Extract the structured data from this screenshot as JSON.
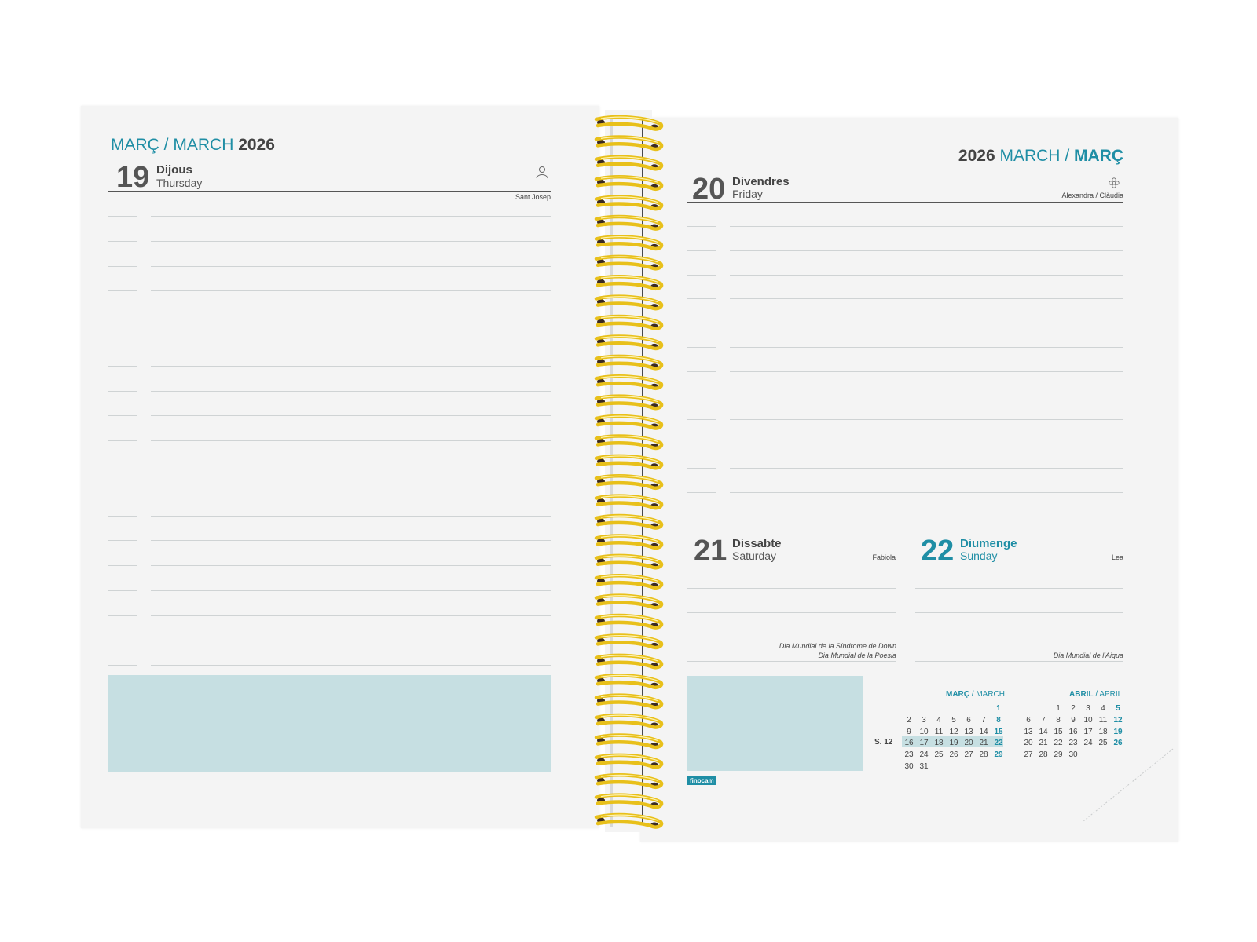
{
  "left_page": {
    "heading": {
      "month_ca": "MARÇ",
      "sep": " / ",
      "month_en": "MARCH",
      "year": " 2026"
    },
    "day": {
      "number": "19",
      "name_ca": "Dijous",
      "name_en": "Thursday",
      "saint": "Sant Josep",
      "icon": "person-icon"
    }
  },
  "right_page": {
    "heading": {
      "year": "2026",
      "month_en": " MARCH",
      "sep": " / ",
      "month_ca": "MARÇ"
    },
    "day20": {
      "number": "20",
      "name_ca": "Divendres",
      "name_en": "Friday",
      "saint": "Alexandra / Clàudia",
      "icon": "flower-icon"
    },
    "day21": {
      "number": "21",
      "name_ca": "Dissabte",
      "name_en": "Saturday",
      "saint": "Fabiola",
      "events": [
        "Dia Mundial de la Síndrome de Down",
        "Dia Mundial de la Poesia"
      ]
    },
    "day22": {
      "number": "22",
      "name_ca": "Diumenge",
      "name_en": "Sunday",
      "saint": "Lea",
      "events": [
        "Dia Mundial de l'Aigua"
      ]
    },
    "brand": "finocam"
  },
  "mini_calendars": {
    "march": {
      "title_ca": "MARÇ",
      "title_en": " / MARCH",
      "weeks": [
        [
          "",
          "",
          "",
          "",
          "",
          "",
          "1"
        ],
        [
          "2",
          "3",
          "4",
          "5",
          "6",
          "7",
          "8"
        ],
        [
          "9",
          "10",
          "11",
          "12",
          "13",
          "14",
          "15"
        ],
        [
          "16",
          "17",
          "18",
          "19",
          "20",
          "21",
          "22"
        ],
        [
          "23",
          "24",
          "25",
          "26",
          "27",
          "28",
          "29"
        ],
        [
          "30",
          "31",
          "",
          "",
          "",
          "",
          ""
        ]
      ]
    },
    "april": {
      "title_ca": "ABRIL",
      "title_en": " / APRIL",
      "weeks": [
        [
          "",
          "",
          "1",
          "2",
          "3",
          "4",
          "5"
        ],
        [
          "6",
          "7",
          "8",
          "9",
          "10",
          "11",
          "12"
        ],
        [
          "13",
          "14",
          "15",
          "16",
          "17",
          "18",
          "19"
        ],
        [
          "20",
          "21",
          "22",
          "23",
          "24",
          "25",
          "26"
        ],
        [
          "27",
          "28",
          "29",
          "30",
          "",
          "",
          ""
        ]
      ]
    },
    "week_label": "S. 12"
  },
  "colors": {
    "accent": "#1f8ea5",
    "notes_fill": "#c6dfe2",
    "spiral": "#e8c01a"
  }
}
